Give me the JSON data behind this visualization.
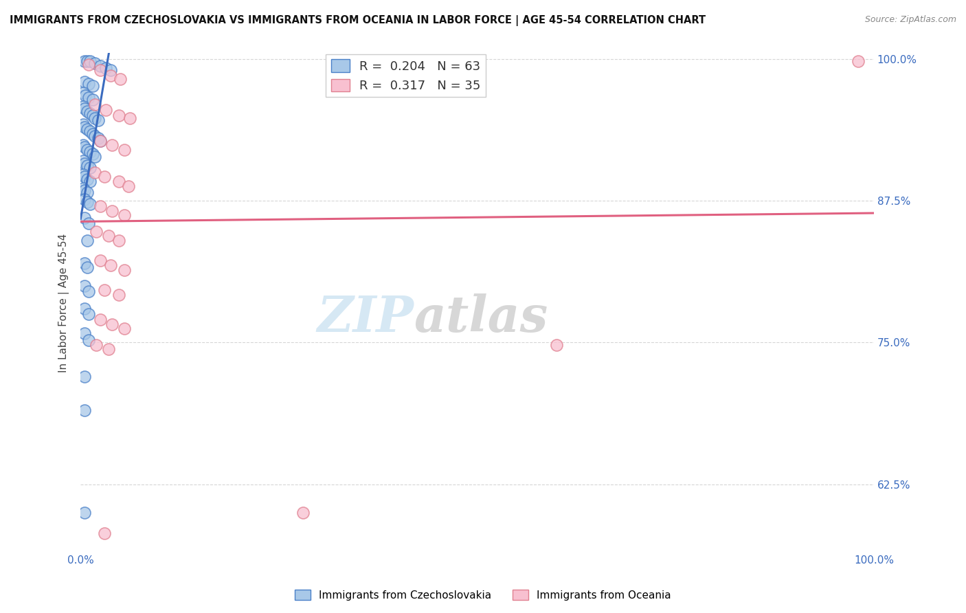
{
  "title": "IMMIGRANTS FROM CZECHOSLOVAKIA VS IMMIGRANTS FROM OCEANIA IN LABOR FORCE | AGE 45-54 CORRELATION CHART",
  "source": "Source: ZipAtlas.com",
  "ylabel": "In Labor Force | Age 45-54",
  "r_blue": 0.204,
  "n_blue": 63,
  "r_pink": 0.317,
  "n_pink": 35,
  "blue_color": "#a8c8e8",
  "blue_edge_color": "#4a80c8",
  "blue_line_color": "#3a6bbf",
  "pink_color": "#f8c0d0",
  "pink_edge_color": "#e08090",
  "pink_line_color": "#e06080",
  "blue_scatter": [
    [
      0.005,
      0.998
    ],
    [
      0.008,
      0.998
    ],
    [
      0.012,
      0.998
    ],
    [
      0.018,
      0.996
    ],
    [
      0.025,
      0.994
    ],
    [
      0.032,
      0.992
    ],
    [
      0.038,
      0.99
    ],
    [
      0.005,
      0.98
    ],
    [
      0.01,
      0.978
    ],
    [
      0.015,
      0.976
    ],
    [
      0.003,
      0.97
    ],
    [
      0.006,
      0.968
    ],
    [
      0.01,
      0.966
    ],
    [
      0.015,
      0.964
    ],
    [
      0.003,
      0.958
    ],
    [
      0.005,
      0.956
    ],
    [
      0.008,
      0.954
    ],
    [
      0.012,
      0.952
    ],
    [
      0.015,
      0.95
    ],
    [
      0.018,
      0.948
    ],
    [
      0.022,
      0.946
    ],
    [
      0.003,
      0.942
    ],
    [
      0.005,
      0.94
    ],
    [
      0.008,
      0.938
    ],
    [
      0.012,
      0.936
    ],
    [
      0.015,
      0.934
    ],
    [
      0.018,
      0.932
    ],
    [
      0.022,
      0.93
    ],
    [
      0.025,
      0.928
    ],
    [
      0.003,
      0.924
    ],
    [
      0.005,
      0.922
    ],
    [
      0.008,
      0.92
    ],
    [
      0.012,
      0.918
    ],
    [
      0.015,
      0.916
    ],
    [
      0.018,
      0.914
    ],
    [
      0.003,
      0.91
    ],
    [
      0.005,
      0.908
    ],
    [
      0.008,
      0.906
    ],
    [
      0.012,
      0.904
    ],
    [
      0.003,
      0.898
    ],
    [
      0.005,
      0.896
    ],
    [
      0.008,
      0.894
    ],
    [
      0.012,
      0.892
    ],
    [
      0.003,
      0.886
    ],
    [
      0.005,
      0.884
    ],
    [
      0.008,
      0.882
    ],
    [
      0.005,
      0.876
    ],
    [
      0.008,
      0.874
    ],
    [
      0.012,
      0.872
    ],
    [
      0.005,
      0.86
    ],
    [
      0.01,
      0.855
    ],
    [
      0.008,
      0.84
    ],
    [
      0.005,
      0.82
    ],
    [
      0.008,
      0.816
    ],
    [
      0.005,
      0.8
    ],
    [
      0.01,
      0.795
    ],
    [
      0.005,
      0.78
    ],
    [
      0.01,
      0.775
    ],
    [
      0.005,
      0.758
    ],
    [
      0.01,
      0.752
    ],
    [
      0.005,
      0.72
    ],
    [
      0.005,
      0.69
    ],
    [
      0.005,
      0.6
    ]
  ],
  "pink_scatter": [
    [
      0.01,
      0.995
    ],
    [
      0.025,
      0.99
    ],
    [
      0.038,
      0.985
    ],
    [
      0.05,
      0.982
    ],
    [
      0.018,
      0.96
    ],
    [
      0.032,
      0.955
    ],
    [
      0.048,
      0.95
    ],
    [
      0.062,
      0.948
    ],
    [
      0.025,
      0.928
    ],
    [
      0.04,
      0.924
    ],
    [
      0.055,
      0.92
    ],
    [
      0.018,
      0.9
    ],
    [
      0.03,
      0.896
    ],
    [
      0.048,
      0.892
    ],
    [
      0.06,
      0.888
    ],
    [
      0.025,
      0.87
    ],
    [
      0.04,
      0.866
    ],
    [
      0.055,
      0.862
    ],
    [
      0.02,
      0.848
    ],
    [
      0.035,
      0.844
    ],
    [
      0.048,
      0.84
    ],
    [
      0.025,
      0.822
    ],
    [
      0.038,
      0.818
    ],
    [
      0.055,
      0.814
    ],
    [
      0.03,
      0.796
    ],
    [
      0.048,
      0.792
    ],
    [
      0.025,
      0.77
    ],
    [
      0.04,
      0.766
    ],
    [
      0.055,
      0.762
    ],
    [
      0.02,
      0.748
    ],
    [
      0.035,
      0.744
    ],
    [
      0.6,
      0.748
    ],
    [
      0.28,
      0.6
    ],
    [
      0.03,
      0.582
    ],
    [
      0.98,
      0.998
    ]
  ],
  "xlim": [
    0.0,
    1.0
  ],
  "ylim": [
    0.565,
    1.005
  ],
  "yticks": [
    0.625,
    0.75,
    0.875,
    1.0
  ],
  "ytick_labels": [
    "62.5%",
    "75.0%",
    "87.5%",
    "100.0%"
  ],
  "xtick_labels": [
    "0.0%",
    "100.0%"
  ],
  "xtick_pos": [
    0.0,
    1.0
  ],
  "background_color": "#ffffff",
  "grid_color": "#cccccc",
  "legend_label_blue": "Immigrants from Czechoslovakia",
  "legend_label_pink": "Immigrants from Oceania",
  "blue_reg_xrange": [
    0.0,
    0.3
  ],
  "pink_reg_xrange": [
    0.0,
    1.0
  ]
}
